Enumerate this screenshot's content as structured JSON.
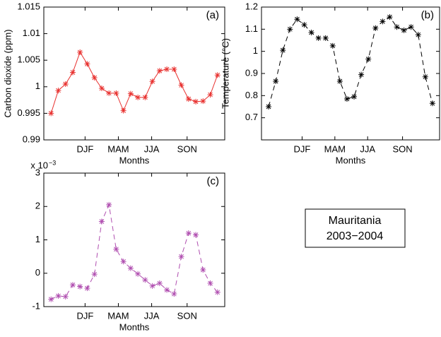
{
  "chart_data": [
    {
      "type": "line",
      "title": "(a)",
      "ylabel": "Carbon dioxide (ppm)",
      "xlabel": "Months",
      "color": "#e8312f",
      "dashed": false,
      "x": [
        1,
        2,
        3,
        4,
        5,
        6,
        7,
        8,
        9,
        10,
        11,
        12,
        13,
        14,
        15,
        16,
        17,
        18,
        19,
        20,
        21,
        22,
        23,
        24
      ],
      "values": [
        0.995,
        0.9993,
        1.0005,
        1.0027,
        1.0065,
        1.0043,
        1.0017,
        0.9997,
        0.9988,
        0.9988,
        0.9955,
        0.9987,
        0.998,
        0.998,
        1.001,
        1.003,
        1.0033,
        1.0033,
        1.0003,
        0.9977,
        0.9972,
        0.9973,
        0.9985,
        1.0022
      ],
      "xlim": [
        0,
        25
      ],
      "xticks": [
        {
          "value": 5.7,
          "label": "DJF"
        },
        {
          "value": 10.3,
          "label": "MAM"
        },
        {
          "value": 14.9,
          "label": "JJA"
        },
        {
          "value": 19.8,
          "label": "SON"
        }
      ],
      "ylim": [
        0.99,
        1.015
      ],
      "yticks": [
        0.99,
        0.995,
        1,
        1.005,
        1.01,
        1.015
      ]
    },
    {
      "type": "line",
      "title": "(b)",
      "ylabel": "Temperature (°C)",
      "xlabel": "Months",
      "color": "#000000",
      "dashed": true,
      "x": [
        1,
        2,
        3,
        4,
        5,
        6,
        7,
        8,
        9,
        10,
        11,
        12,
        13,
        14,
        15,
        16,
        17,
        18,
        19,
        20,
        21,
        22,
        23,
        24
      ],
      "values": [
        0.75,
        0.865,
        1.005,
        1.1,
        1.145,
        1.12,
        1.085,
        1.06,
        1.06,
        1.025,
        0.865,
        0.785,
        0.795,
        0.895,
        0.965,
        1.105,
        1.135,
        1.155,
        1.11,
        1.095,
        1.11,
        1.075,
        0.885,
        0.765
      ],
      "xlim": [
        0,
        25
      ],
      "xticks": [
        {
          "value": 5.7,
          "label": "DJF"
        },
        {
          "value": 10.3,
          "label": "MAM"
        },
        {
          "value": 14.9,
          "label": "JJA"
        },
        {
          "value": 19.8,
          "label": "SON"
        }
      ],
      "ylim": [
        0.6,
        1.2
      ],
      "yticks": [
        0.7,
        0.8,
        0.9,
        1,
        1.1,
        1.2
      ]
    },
    {
      "type": "line",
      "title": "(c)",
      "xlabel": "Months",
      "color": "#b04fb0",
      "dashed": true,
      "y_multiplier": {
        "base": "x 10",
        "exponent": "−3"
      },
      "x": [
        1,
        2,
        3,
        4,
        5,
        6,
        7,
        8,
        9,
        10,
        11,
        12,
        13,
        14,
        15,
        16,
        17,
        18,
        19,
        20,
        21,
        22,
        23,
        24
      ],
      "values": [
        -0.78,
        -0.68,
        -0.7,
        -0.35,
        -0.4,
        -0.45,
        -0.03,
        1.55,
        2.05,
        0.72,
        0.35,
        0.15,
        -0.02,
        -0.2,
        -0.38,
        -0.3,
        -0.5,
        -0.62,
        0.5,
        1.2,
        1.15,
        0.1,
        -0.3,
        -0.57
      ],
      "xlim": [
        0,
        25
      ],
      "xticks": [
        {
          "value": 5.7,
          "label": "DJF"
        },
        {
          "value": 10.3,
          "label": "MAM"
        },
        {
          "value": 14.9,
          "label": "JJA"
        },
        {
          "value": 19.8,
          "label": "SON"
        }
      ],
      "ylim": [
        -1,
        3
      ],
      "yticks": [
        -1,
        0,
        1,
        2,
        3
      ]
    }
  ],
  "annotation": {
    "lines": [
      "Mauritania",
      "2003−2004"
    ]
  }
}
